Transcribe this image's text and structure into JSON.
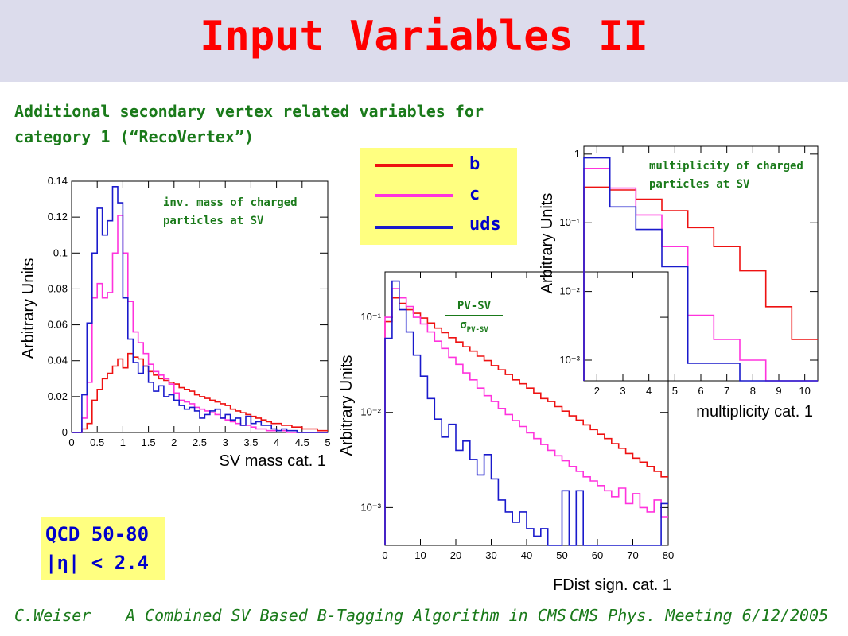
{
  "title": "Input Variables II",
  "subtitle_line1": "Additional secondary vertex related variables for",
  "subtitle_line2": "category 1 (“RecoVertex”)",
  "legend": [
    {
      "label": "b",
      "color": "#ee1111"
    },
    {
      "label": "c",
      "color": "#ff33dd"
    },
    {
      "label": "uds",
      "color": "#1a1acc"
    }
  ],
  "qcd_box": {
    "line1": "QCD 50-80",
    "line2": "|η| < 2.4"
  },
  "footer": {
    "author": "C.Weiser",
    "talk": "A Combined SV Based B-Tagging Algorithm in CMS",
    "meeting": "CMS Phys. Meeting 6/12/2005"
  },
  "chart_data": [
    {
      "type": "line",
      "annotation": [
        "inv. mass of charged",
        "particles at SV"
      ],
      "xlabel": "SV mass cat. 1",
      "ylabel": "Arbitrary Units",
      "xlim": [
        0,
        5
      ],
      "ylim": [
        0,
        0.14
      ],
      "log_y": false,
      "xticks": [
        0,
        0.5,
        1,
        1.5,
        2,
        2.5,
        3,
        3.5,
        4,
        4.5,
        5
      ],
      "xtick_labels": [
        "0",
        "0.5",
        "1",
        "1.5",
        "2",
        "2.5",
        "3",
        "3.5",
        "4",
        "4.5",
        "5"
      ],
      "yticks": [
        0,
        0.02,
        0.04,
        0.06,
        0.08,
        0.1,
        0.12,
        0.14
      ],
      "ytick_labels": [
        "0",
        "0.02",
        "0.04",
        "0.06",
        "0.08",
        "0.1",
        "0.12",
        "0.14"
      ],
      "bin_edges_start": 0,
      "bin_width": 0.1,
      "series": [
        {
          "name": "b",
          "color": "#ee1111",
          "values": [
            0,
            0,
            0.002,
            0.005,
            0.018,
            0.024,
            0.03,
            0.033,
            0.037,
            0.041,
            0.036,
            0.044,
            0.042,
            0.041,
            0.037,
            0.034,
            0.032,
            0.03,
            0.029,
            0.028,
            0.027,
            0.025,
            0.024,
            0.023,
            0.021,
            0.02,
            0.019,
            0.018,
            0.017,
            0.016,
            0.015,
            0.013,
            0.012,
            0.011,
            0.01,
            0.009,
            0.008,
            0.007,
            0.006,
            0.005,
            0.005,
            0.004,
            0.004,
            0.003,
            0.003,
            0.002,
            0.002,
            0.002,
            0.001,
            0.001
          ]
        },
        {
          "name": "c",
          "color": "#ff33dd",
          "values": [
            0,
            0,
            0.008,
            0.028,
            0.075,
            0.083,
            0.075,
            0.078,
            0.1,
            0.121,
            0.1,
            0.073,
            0.056,
            0.05,
            0.044,
            0.038,
            0.034,
            0.032,
            0.03,
            0.027,
            0.022,
            0.018,
            0.017,
            0.016,
            0.014,
            0.013,
            0.012,
            0.011,
            0.01,
            0.008,
            0.007,
            0.006,
            0.005,
            0.004,
            0.004,
            0.003,
            0.002,
            0.002,
            0.001,
            0.001,
            0.001,
            0.001,
            0,
            0,
            0,
            0,
            0,
            0,
            0,
            0
          ]
        },
        {
          "name": "uds",
          "color": "#1a1acc",
          "values": [
            0,
            0,
            0.021,
            0.061,
            0.1,
            0.125,
            0.11,
            0.118,
            0.137,
            0.128,
            0.075,
            0.052,
            0.039,
            0.033,
            0.037,
            0.028,
            0.023,
            0.026,
            0.02,
            0.021,
            0.018,
            0.015,
            0.013,
            0.014,
            0.012,
            0.008,
            0.01,
            0.012,
            0.013,
            0.008,
            0.01,
            0.007,
            0.008,
            0.004,
            0.009,
            0.005,
            0.006,
            0.004,
            0.004,
            0.002,
            0.001,
            0.002,
            0.001,
            0.001,
            0,
            0,
            0,
            0,
            0,
            0
          ]
        }
      ]
    },
    {
      "type": "line",
      "annotation_num": "PV-SV",
      "annotation_den": "σ",
      "annotation_den_sub": "PV-SV",
      "xlabel": "FDist sign. cat. 1",
      "ylabel": "Arbitrary Units",
      "xlim": [
        0,
        80
      ],
      "ylim": [
        0.0004,
        0.3
      ],
      "log_y": true,
      "xticks": [
        0,
        10,
        20,
        30,
        40,
        50,
        60,
        70,
        80
      ],
      "xtick_labels": [
        "0",
        "10",
        "20",
        "30",
        "40",
        "50",
        "60",
        "70",
        "80"
      ],
      "yticks": [
        0.001,
        0.01,
        0.1
      ],
      "ytick_labels": [
        "10⁻³",
        "10⁻²",
        "10⁻¹"
      ],
      "bin_edges_start": 0,
      "bin_width": 2,
      "series": [
        {
          "name": "b",
          "color": "#ee1111",
          "values": [
            0.09,
            0.16,
            0.14,
            0.12,
            0.11,
            0.098,
            0.087,
            0.077,
            0.069,
            0.061,
            0.055,
            0.049,
            0.044,
            0.039,
            0.035,
            0.031,
            0.028,
            0.025,
            0.022,
            0.02,
            0.018,
            0.016,
            0.014,
            0.013,
            0.0115,
            0.0103,
            0.0092,
            0.0083,
            0.0074,
            0.0066,
            0.0059,
            0.0053,
            0.0047,
            0.0042,
            0.0037,
            0.0033,
            0.003,
            0.0027,
            0.0024,
            0.0021
          ]
        },
        {
          "name": "c",
          "color": "#ff33dd",
          "values": [
            0.1,
            0.2,
            0.16,
            0.13,
            0.1,
            0.085,
            0.07,
            0.056,
            0.047,
            0.038,
            0.032,
            0.026,
            0.022,
            0.018,
            0.015,
            0.013,
            0.011,
            0.0095,
            0.0082,
            0.0071,
            0.0061,
            0.0053,
            0.0046,
            0.004,
            0.0035,
            0.0031,
            0.0027,
            0.0024,
            0.0021,
            0.0019,
            0.0017,
            0.0015,
            0.0013,
            0.0016,
            0.0011,
            0.0014,
            0.001,
            0.0009,
            0.0012,
            0.0008
          ]
        },
        {
          "name": "uds",
          "color": "#1a1acc",
          "values": [
            0.06,
            0.24,
            0.12,
            0.07,
            0.04,
            0.024,
            0.014,
            0.0085,
            0.0055,
            0.0075,
            0.004,
            0.005,
            0.0032,
            0.0022,
            0.0036,
            0.002,
            0.0012,
            0.0009,
            0.0007,
            0.0009,
            0.0006,
            0.0005,
            0.0006,
            0.0004,
            0.0004,
            0.0015,
            0.0004,
            0.0015,
            0.0004,
            0.0004,
            0.0004,
            0.0004,
            0.0004,
            0.0004,
            0.0004,
            0.0004,
            0.0004,
            0.0004,
            0.0004,
            0.0011
          ]
        }
      ]
    },
    {
      "type": "line",
      "annotation": [
        "multiplicity of charged",
        "particles at SV"
      ],
      "xlabel": "multiplicity cat. 1",
      "ylabel": "Arbitrary Units",
      "xlim": [
        1.5,
        10.5
      ],
      "ylim": [
        0.0005,
        1.3
      ],
      "log_y": true,
      "xticks": [
        2,
        3,
        4,
        5,
        6,
        7,
        8,
        9,
        10
      ],
      "xtick_labels": [
        "2",
        "3",
        "4",
        "5",
        "6",
        "7",
        "8",
        "9",
        "10"
      ],
      "yticks": [
        0.001,
        0.01,
        0.1,
        1
      ],
      "ytick_labels": [
        "10⁻³",
        "10⁻²",
        "10⁻¹",
        "1"
      ],
      "bin_edges_start": 1.5,
      "bin_width": 1,
      "series": [
        {
          "name": "b",
          "color": "#ee1111",
          "values": [
            0.33,
            0.3,
            0.22,
            0.15,
            0.085,
            0.045,
            0.02,
            0.006,
            0.002
          ]
        },
        {
          "name": "c",
          "color": "#ff33dd",
          "values": [
            0.62,
            0.32,
            0.13,
            0.045,
            0.0045,
            0.002,
            0.001,
            0.0005,
            0.0005
          ]
        },
        {
          "name": "uds",
          "color": "#1a1acc",
          "values": [
            0.88,
            0.17,
            0.08,
            0.023,
            0.0009,
            0.0009,
            0.0005,
            0.0005,
            0.0005
          ]
        }
      ]
    }
  ]
}
